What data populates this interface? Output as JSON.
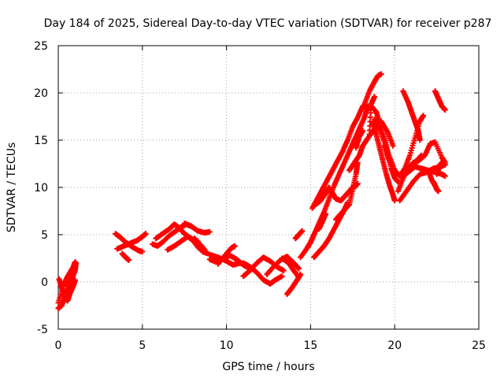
{
  "chart_data": {
    "type": "scatter",
    "title": "Day 184 of 2025, Sidereal Day-to-day VTEC variation (SDTVAR) for receiver p287",
    "xlabel": "GPS time / hours",
    "ylabel": "SDTVAR / TECUs",
    "xlim": [
      0,
      25
    ],
    "ylim": [
      -5,
      25
    ],
    "xticks": [
      0,
      5,
      10,
      15,
      20,
      25
    ],
    "yticks": [
      -5,
      0,
      5,
      10,
      15,
      20,
      25
    ],
    "grid": true,
    "marker": "+",
    "color": "#ff0000",
    "tracks": [
      {
        "name": "t1",
        "points": [
          [
            0.0,
            -2.8
          ],
          [
            0.2,
            -2.5
          ],
          [
            0.4,
            -1.6
          ],
          [
            0.6,
            -0.6
          ],
          [
            0.8,
            0.3
          ],
          [
            1.0,
            1.2
          ],
          [
            1.05,
            2.0
          ]
        ]
      },
      {
        "name": "t2",
        "points": [
          [
            0.0,
            -2.2
          ],
          [
            0.3,
            -0.5
          ],
          [
            0.5,
            0.4
          ],
          [
            0.7,
            1.0
          ],
          [
            0.9,
            1.6
          ],
          [
            1.0,
            2.1
          ]
        ]
      },
      {
        "name": "t3",
        "points": [
          [
            0.05,
            0.3
          ],
          [
            0.2,
            -0.6
          ],
          [
            0.35,
            -1.5
          ],
          [
            0.55,
            -2.0
          ],
          [
            0.7,
            -1.2
          ],
          [
            0.9,
            -0.4
          ],
          [
            1.0,
            0.2
          ]
        ]
      },
      {
        "name": "t4",
        "points": [
          [
            3.4,
            5.1
          ],
          [
            3.7,
            4.7
          ],
          [
            4.0,
            4.2
          ],
          [
            4.4,
            3.7
          ],
          [
            4.8,
            3.3
          ],
          [
            5.0,
            3.2
          ]
        ]
      },
      {
        "name": "t5",
        "points": [
          [
            3.5,
            3.5
          ],
          [
            3.9,
            3.8
          ],
          [
            4.3,
            4.1
          ],
          [
            4.7,
            4.4
          ],
          [
            5.0,
            4.8
          ],
          [
            5.2,
            5.1
          ]
        ]
      },
      {
        "name": "t6",
        "points": [
          [
            3.8,
            3.0
          ],
          [
            4.0,
            2.6
          ],
          [
            4.2,
            2.3
          ]
        ]
      },
      {
        "name": "t7",
        "points": [
          [
            5.6,
            4.0
          ],
          [
            5.9,
            3.8
          ],
          [
            6.2,
            4.2
          ],
          [
            6.6,
            4.9
          ],
          [
            7.0,
            5.4
          ],
          [
            7.3,
            5.8
          ],
          [
            7.6,
            6.1
          ],
          [
            7.9,
            5.9
          ]
        ]
      },
      {
        "name": "t8",
        "points": [
          [
            5.8,
            4.6
          ],
          [
            6.2,
            5.1
          ],
          [
            6.6,
            5.6
          ],
          [
            6.9,
            6.1
          ],
          [
            7.2,
            5.7
          ],
          [
            7.5,
            5.1
          ],
          [
            7.9,
            4.6
          ],
          [
            8.3,
            4.3
          ]
        ]
      },
      {
        "name": "t9",
        "points": [
          [
            6.5,
            3.4
          ],
          [
            6.9,
            3.8
          ],
          [
            7.3,
            4.3
          ],
          [
            7.7,
            4.8
          ],
          [
            8.0,
            4.4
          ],
          [
            8.3,
            3.7
          ],
          [
            8.6,
            3.2
          ],
          [
            8.9,
            3.0
          ]
        ]
      },
      {
        "name": "t10",
        "points": [
          [
            7.5,
            6.2
          ],
          [
            7.9,
            5.9
          ],
          [
            8.3,
            5.4
          ],
          [
            8.7,
            5.2
          ],
          [
            9.0,
            5.3
          ]
        ]
      },
      {
        "name": "t11",
        "points": [
          [
            8.1,
            4.6
          ],
          [
            8.3,
            4.2
          ],
          [
            8.5,
            3.8
          ],
          [
            8.7,
            3.4
          ]
        ]
      },
      {
        "name": "t12",
        "points": [
          [
            9.0,
            2.4
          ],
          [
            9.4,
            2.1
          ],
          [
            9.8,
            2.5
          ],
          [
            10.2,
            2.8
          ],
          [
            10.6,
            2.4
          ],
          [
            11.0,
            1.8
          ],
          [
            11.4,
            1.4
          ]
        ]
      },
      {
        "name": "t13",
        "points": [
          [
            9.0,
            2.9
          ],
          [
            9.5,
            2.6
          ],
          [
            10.0,
            2.2
          ],
          [
            10.4,
            1.8
          ],
          [
            10.8,
            2.0
          ],
          [
            11.2,
            1.8
          ]
        ]
      },
      {
        "name": "t14",
        "points": [
          [
            9.5,
            1.9
          ],
          [
            10.0,
            3.0
          ],
          [
            10.3,
            3.6
          ],
          [
            10.5,
            3.8
          ]
        ]
      },
      {
        "name": "t15",
        "points": [
          [
            11.0,
            0.6
          ],
          [
            11.4,
            1.2
          ],
          [
            11.8,
            2.0
          ],
          [
            12.2,
            2.6
          ],
          [
            12.6,
            2.2
          ],
          [
            13.0,
            1.6
          ],
          [
            13.4,
            1.2
          ]
        ]
      },
      {
        "name": "t16",
        "points": [
          [
            11.0,
            2.0
          ],
          [
            11.4,
            1.6
          ],
          [
            11.8,
            1.0
          ],
          [
            12.2,
            0.2
          ],
          [
            12.6,
            -0.2
          ],
          [
            12.9,
            0.2
          ],
          [
            13.3,
            0.6
          ]
        ]
      },
      {
        "name": "t17",
        "points": [
          [
            12.4,
            0.8
          ],
          [
            12.8,
            1.6
          ],
          [
            13.2,
            2.3
          ],
          [
            13.6,
            2.7
          ],
          [
            14.0,
            2.0
          ],
          [
            14.3,
            1.4
          ]
        ]
      },
      {
        "name": "t18",
        "points": [
          [
            13.3,
            2.5
          ],
          [
            13.7,
            2.0
          ],
          [
            14.0,
            1.2
          ],
          [
            14.3,
            0.5
          ]
        ]
      },
      {
        "name": "t19",
        "points": [
          [
            13.6,
            -1.3
          ],
          [
            13.9,
            -0.6
          ],
          [
            14.2,
            0.2
          ],
          [
            14.4,
            0.8
          ]
        ]
      },
      {
        "name": "t20",
        "points": [
          [
            14.4,
            2.6
          ],
          [
            14.8,
            3.6
          ],
          [
            15.0,
            4.2
          ],
          [
            15.2,
            5.0
          ],
          [
            15.5,
            6.2
          ],
          [
            15.8,
            7.4
          ],
          [
            16.1,
            8.8
          ],
          [
            16.4,
            10.2
          ],
          [
            16.7,
            11.4
          ],
          [
            17.0,
            12.6
          ],
          [
            17.3,
            13.8
          ],
          [
            17.6,
            15.0
          ],
          [
            17.9,
            16.2
          ],
          [
            18.2,
            17.4
          ],
          [
            18.4,
            18.6
          ]
        ]
      },
      {
        "name": "t21",
        "points": [
          [
            14.1,
            4.6
          ],
          [
            14.3,
            5.0
          ],
          [
            14.5,
            5.4
          ]
        ]
      },
      {
        "name": "t22",
        "points": [
          [
            15.1,
            7.8
          ],
          [
            15.4,
            8.8
          ],
          [
            15.7,
            9.8
          ],
          [
            16.0,
            10.8
          ],
          [
            16.3,
            11.8
          ],
          [
            16.6,
            12.8
          ],
          [
            16.9,
            13.8
          ],
          [
            17.2,
            15.0
          ],
          [
            17.5,
            16.4
          ],
          [
            17.8,
            17.4
          ],
          [
            18.1,
            18.6
          ],
          [
            18.5,
            18.4
          ]
        ]
      },
      {
        "name": "t23",
        "points": [
          [
            15.3,
            8.2
          ],
          [
            15.6,
            8.6
          ],
          [
            15.9,
            9.4
          ],
          [
            16.1,
            10.0
          ],
          [
            16.3,
            9.4
          ],
          [
            16.5,
            8.8
          ],
          [
            16.8,
            8.6
          ],
          [
            17.0,
            9.0
          ],
          [
            17.3,
            9.6
          ],
          [
            17.6,
            10.2
          ]
        ]
      },
      {
        "name": "t24",
        "points": [
          [
            15.2,
            2.6
          ],
          [
            15.5,
            3.2
          ],
          [
            15.8,
            3.8
          ],
          [
            16.1,
            4.6
          ],
          [
            16.4,
            5.6
          ],
          [
            16.7,
            6.6
          ],
          [
            17.0,
            7.6
          ],
          [
            17.2,
            8.4
          ]
        ]
      },
      {
        "name": "t25",
        "points": [
          [
            15.5,
            5.6
          ],
          [
            15.7,
            6.4
          ],
          [
            15.9,
            7.2
          ]
        ]
      },
      {
        "name": "t26",
        "points": [
          [
            16.5,
            6.6
          ],
          [
            16.8,
            7.2
          ],
          [
            17.1,
            7.8
          ],
          [
            17.3,
            8.2
          ],
          [
            17.5,
            9.8
          ],
          [
            17.7,
            11.4
          ],
          [
            17.8,
            12.6
          ]
        ]
      },
      {
        "name": "t27",
        "points": [
          [
            17.3,
            11.8
          ],
          [
            17.6,
            12.6
          ],
          [
            17.9,
            13.4
          ],
          [
            18.1,
            14.4
          ],
          [
            18.4,
            15.2
          ],
          [
            18.8,
            16.2
          ],
          [
            19.2,
            17.0
          ],
          [
            19.6,
            15.8
          ],
          [
            19.9,
            14.4
          ]
        ]
      },
      {
        "name": "t28",
        "points": [
          [
            17.6,
            10.0
          ],
          [
            17.8,
            10.4
          ]
        ]
      },
      {
        "name": "t29",
        "points": [
          [
            17.7,
            14.2
          ],
          [
            17.9,
            15.4
          ],
          [
            18.1,
            16.0
          ]
        ]
      },
      {
        "name": "t30",
        "points": [
          [
            18.5,
            15.6
          ],
          [
            18.6,
            18.8
          ],
          [
            18.8,
            19.6
          ]
        ]
      },
      {
        "name": "t31",
        "points": [
          [
            18.7,
            16.8
          ],
          [
            18.9,
            15.6
          ],
          [
            19.1,
            14.2
          ],
          [
            19.3,
            12.8
          ],
          [
            19.5,
            11.4
          ],
          [
            19.7,
            10.2
          ],
          [
            19.9,
            9.2
          ],
          [
            20.0,
            8.6
          ]
        ]
      },
      {
        "name": "t32",
        "points": [
          [
            18.6,
            18.6
          ],
          [
            18.9,
            18.0
          ],
          [
            19.1,
            16.8
          ],
          [
            19.4,
            15.2
          ],
          [
            19.6,
            13.6
          ],
          [
            19.8,
            12.0
          ],
          [
            20.0,
            11.0
          ],
          [
            20.2,
            10.6
          ]
        ]
      },
      {
        "name": "t33",
        "points": [
          [
            18.8,
            17.2
          ],
          [
            19.1,
            16.2
          ],
          [
            19.4,
            14.8
          ],
          [
            19.7,
            13.2
          ],
          [
            20.0,
            11.8
          ],
          [
            20.3,
            11.2
          ],
          [
            20.6,
            12.0
          ],
          [
            20.9,
            13.4
          ],
          [
            21.2,
            15.2
          ],
          [
            21.5,
            17.0
          ],
          [
            21.7,
            17.6
          ]
        ]
      },
      {
        "name": "t34",
        "points": [
          [
            18.2,
            18.8
          ],
          [
            18.5,
            20.2
          ],
          [
            18.8,
            21.2
          ],
          [
            19.0,
            21.8
          ],
          [
            19.2,
            22.0
          ]
        ]
      },
      {
        "name": "t35",
        "points": [
          [
            19.4,
            14.4
          ],
          [
            19.6,
            13.2
          ],
          [
            19.8,
            12.4
          ]
        ]
      },
      {
        "name": "t36",
        "points": [
          [
            20.2,
            9.6
          ],
          [
            20.5,
            11.0
          ],
          [
            20.8,
            12.0
          ],
          [
            21.1,
            12.6
          ],
          [
            21.4,
            12.8
          ],
          [
            21.8,
            13.4
          ],
          [
            22.1,
            14.6
          ],
          [
            22.4,
            14.8
          ],
          [
            22.8,
            13.2
          ],
          [
            23.0,
            12.6
          ]
        ]
      },
      {
        "name": "t37",
        "points": [
          [
            20.3,
            8.6
          ],
          [
            20.7,
            9.6
          ],
          [
            21.1,
            10.6
          ],
          [
            21.5,
            11.4
          ],
          [
            21.9,
            11.6
          ],
          [
            22.3,
            12.0
          ],
          [
            22.7,
            12.2
          ],
          [
            23.0,
            12.4
          ]
        ]
      },
      {
        "name": "t38",
        "points": [
          [
            20.5,
            20.2
          ],
          [
            20.8,
            19.0
          ],
          [
            21.0,
            18.0
          ],
          [
            21.2,
            17.0
          ],
          [
            21.4,
            16.0
          ],
          [
            21.5,
            15.0
          ]
        ]
      },
      {
        "name": "t39",
        "points": [
          [
            20.4,
            11.2
          ],
          [
            20.8,
            11.6
          ],
          [
            21.2,
            12.2
          ],
          [
            21.6,
            12.0
          ],
          [
            22.0,
            11.8
          ],
          [
            22.4,
            11.6
          ],
          [
            22.8,
            11.4
          ],
          [
            23.0,
            11.2
          ]
        ]
      },
      {
        "name": "t40",
        "points": [
          [
            21.0,
            12.4
          ],
          [
            21.4,
            13.0
          ],
          [
            21.6,
            13.4
          ]
        ]
      },
      {
        "name": "t41",
        "points": [
          [
            22.0,
            11.8
          ],
          [
            22.2,
            10.8
          ],
          [
            22.4,
            10.2
          ]
        ]
      },
      {
        "name": "t42",
        "points": [
          [
            22.3,
            10.6
          ],
          [
            22.5,
            9.8
          ],
          [
            22.6,
            9.6
          ]
        ]
      },
      {
        "name": "t43",
        "points": [
          [
            22.4,
            20.2
          ],
          [
            22.6,
            19.4
          ],
          [
            22.8,
            18.6
          ],
          [
            23.0,
            18.2
          ]
        ]
      },
      {
        "name": "t44",
        "points": [
          [
            22.5,
            11.4
          ],
          [
            22.7,
            12.4
          ],
          [
            22.9,
            12.8
          ]
        ]
      }
    ]
  }
}
